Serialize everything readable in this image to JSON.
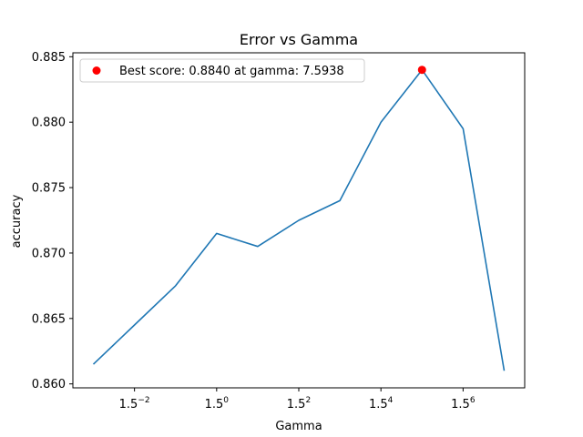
{
  "chart_data": {
    "type": "line",
    "title": "Error vs Gamma",
    "xlabel": "Gamma",
    "ylabel": "accuracy",
    "x_scale": "log",
    "x_log_base": 1.5,
    "x_tick_base": "1.5",
    "x_tick_exponents": [
      "−2",
      "0",
      "2",
      "4",
      "6"
    ],
    "x_tick_exponent_values": [
      -2,
      0,
      2,
      4,
      6
    ],
    "y_ticks": [
      "0.860",
      "0.865",
      "0.870",
      "0.875",
      "0.880",
      "0.885"
    ],
    "y_tick_values": [
      0.86,
      0.865,
      0.87,
      0.875,
      0.88,
      0.885
    ],
    "x_exponent_range": [
      -3.5,
      7.5
    ],
    "ylim": [
      0.8597,
      0.8853
    ],
    "grid": false,
    "legend_position": "top-left",
    "series": [
      {
        "color": "#1f77b4",
        "x_exponents": [
          -3,
          -2,
          -1,
          0,
          1,
          2,
          3,
          4,
          5,
          6,
          7
        ],
        "values": [
          0.8615,
          0.8645,
          0.8675,
          0.8715,
          0.8705,
          0.8725,
          0.874,
          0.88,
          0.884,
          0.8795,
          0.861
        ]
      }
    ],
    "best_point": {
      "color": "#ff0000",
      "x_exponent": 5,
      "value": 0.884,
      "legend_label": "Best score: 0.8840 at gamma: 7.5938"
    }
  }
}
